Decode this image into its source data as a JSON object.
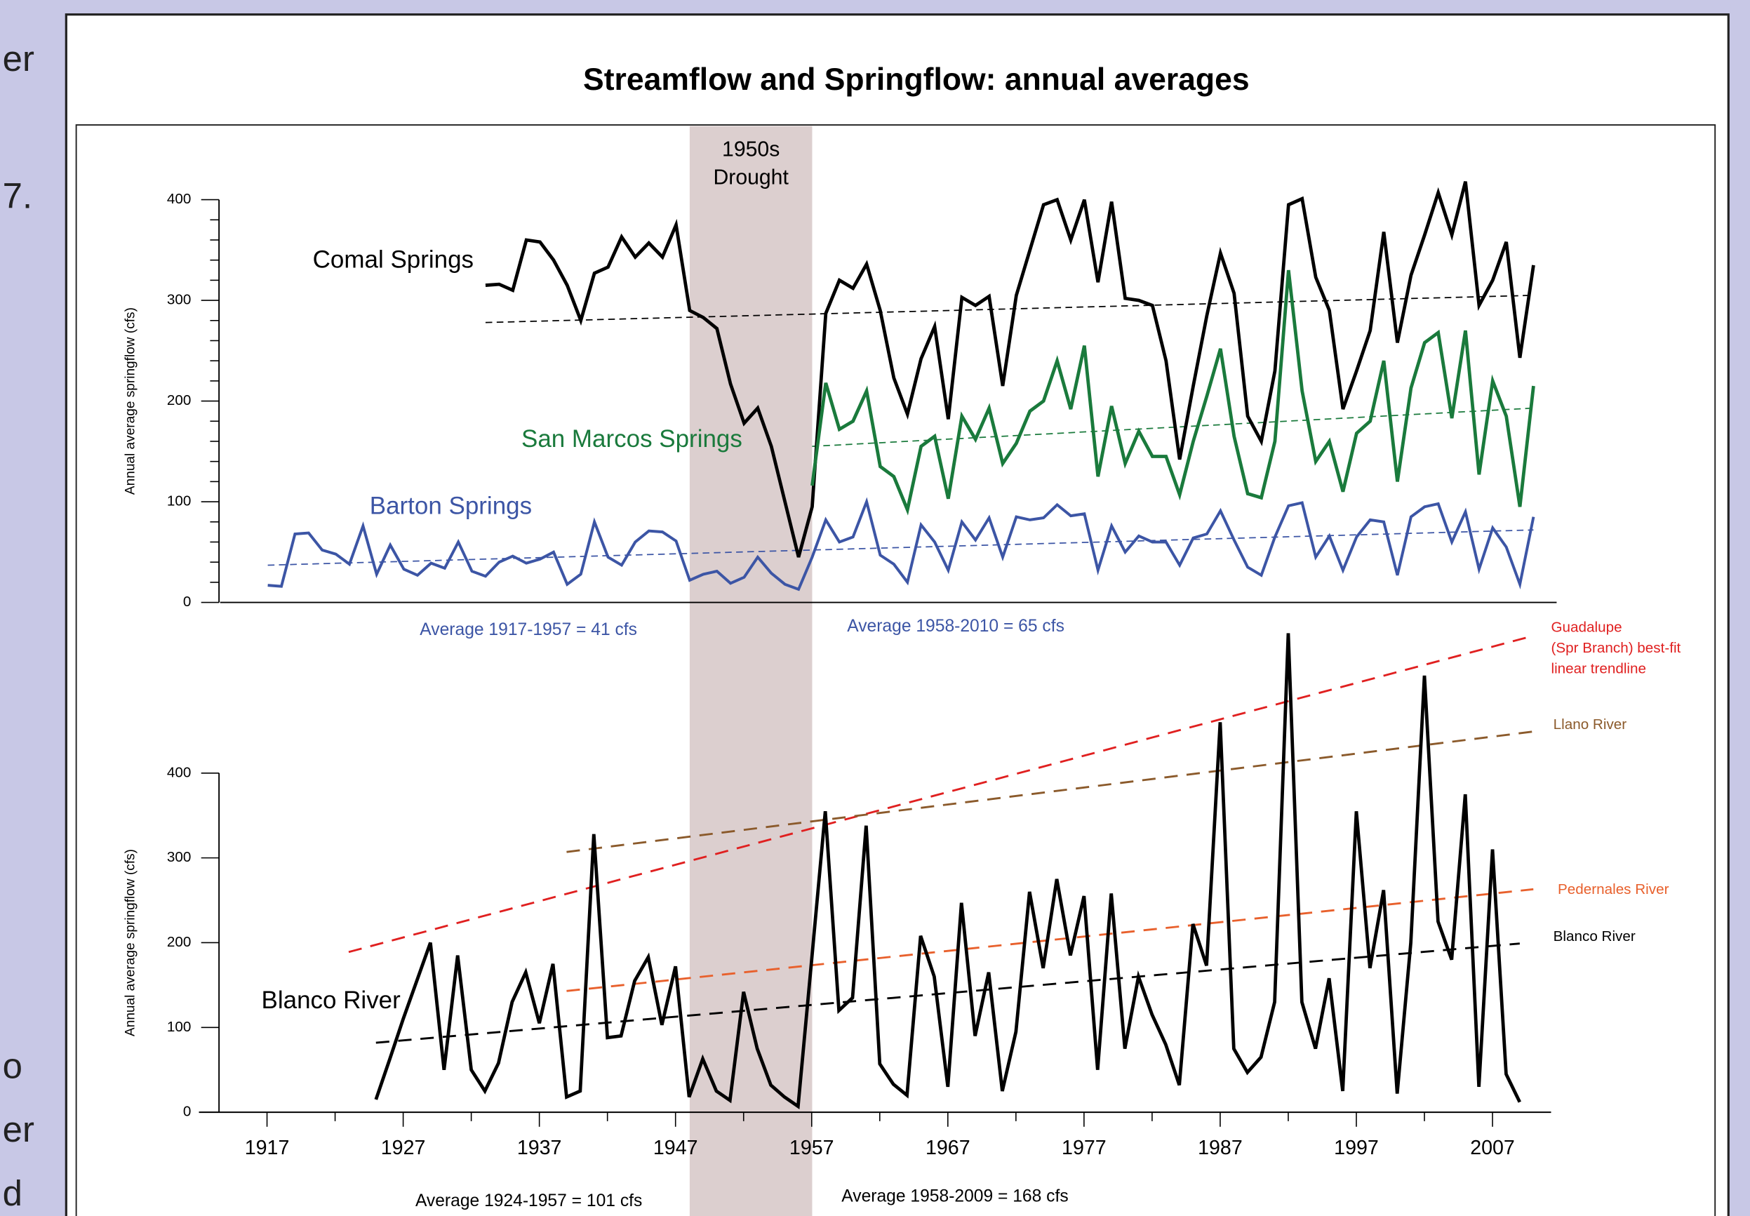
{
  "background_text": [
    "er",
    "7.",
    "o",
    "er",
    "d"
  ],
  "chart_data": [
    {
      "type": "line",
      "title": "Streamflow and Springflow: annual averages",
      "ylabel": "Annual average springflow (cfs)",
      "xlim": [
        1913.5,
        2011.7
      ],
      "ylim": [
        0,
        400
      ],
      "yticks": [
        0,
        100,
        200,
        300,
        400
      ],
      "yminor_ticks": [
        20,
        40,
        60,
        80,
        120,
        140,
        160,
        180,
        220,
        240,
        260,
        280,
        320,
        340,
        360,
        380
      ],
      "shaded_span": [
        1948,
        1957
      ],
      "shaded_color": "#dccfcf",
      "shaded_label": [
        "1950s",
        "Drought"
      ],
      "annotations": [
        "Average 1917-1957  = 41 cfs",
        "Average 1958-2010  = 65 cfs"
      ],
      "annotation_color": "#3c55a5",
      "x": [
        1917,
        1918,
        1919,
        1920,
        1921,
        1922,
        1923,
        1924,
        1925,
        1926,
        1927,
        1928,
        1929,
        1930,
        1931,
        1932,
        1933,
        1934,
        1935,
        1936,
        1937,
        1938,
        1939,
        1940,
        1941,
        1942,
        1943,
        1944,
        1945,
        1946,
        1947,
        1948,
        1949,
        1950,
        1951,
        1952,
        1953,
        1954,
        1955,
        1956,
        1957,
        1958,
        1959,
        1960,
        1961,
        1962,
        1963,
        1964,
        1965,
        1966,
        1967,
        1968,
        1969,
        1970,
        1971,
        1972,
        1973,
        1974,
        1975,
        1976,
        1977,
        1978,
        1979,
        1980,
        1981,
        1982,
        1983,
        1984,
        1985,
        1986,
        1987,
        1988,
        1989,
        1990,
        1991,
        1992,
        1993,
        1994,
        1995,
        1996,
        1997,
        1998,
        1999,
        2000,
        2001,
        2002,
        2003,
        2004,
        2005,
        2006,
        2007,
        2008,
        2009,
        2010
      ],
      "series": [
        {
          "name": "Comal Springs",
          "color": "#000000",
          "values": [
            null,
            null,
            null,
            null,
            null,
            null,
            null,
            null,
            null,
            null,
            null,
            null,
            null,
            null,
            null,
            null,
            315,
            316,
            310,
            360,
            358,
            340,
            315,
            280,
            327,
            333,
            363,
            343,
            357,
            343,
            375,
            290,
            283,
            272,
            217,
            178,
            193,
            155,
            100,
            45,
            95,
            287,
            320,
            312,
            336,
            290,
            223,
            187,
            242,
            274,
            182,
            303,
            295,
            304,
            215,
            305,
            350,
            395,
            400,
            360,
            400,
            318,
            398,
            302,
            300,
            295,
            240,
            142,
            215,
            285,
            347,
            307,
            185,
            160,
            230,
            395,
            401,
            323,
            290,
            192,
            230,
            270,
            368,
            258,
            325,
            365,
            407,
            365,
            418,
            295,
            320,
            358,
            243,
            335
          ],
          "trend": {
            "x": [
              1933,
              2010
            ],
            "values": [
              278,
              305
            ]
          }
        },
        {
          "name": "San Marcos Springs",
          "color": "#1a7a3c",
          "values": [
            null,
            null,
            null,
            null,
            null,
            null,
            null,
            null,
            null,
            null,
            null,
            null,
            null,
            null,
            null,
            null,
            null,
            null,
            null,
            null,
            null,
            null,
            null,
            null,
            null,
            null,
            null,
            null,
            null,
            null,
            null,
            null,
            null,
            null,
            null,
            null,
            null,
            null,
            null,
            null,
            116,
            218,
            172,
            180,
            210,
            135,
            125,
            92,
            155,
            165,
            103,
            185,
            162,
            193,
            138,
            158,
            190,
            200,
            240,
            192,
            255,
            125,
            195,
            138,
            170,
            145,
            145,
            107,
            160,
            205,
            252,
            165,
            108,
            104,
            160,
            330,
            210,
            140,
            160,
            110,
            168,
            180,
            240,
            120,
            213,
            258,
            268,
            183,
            270,
            127,
            220,
            185,
            95,
            215
          ],
          "trend": {
            "x": [
              1957,
              2010
            ],
            "values": [
              155,
              193
            ]
          }
        },
        {
          "name": "Barton Springs",
          "color": "#3c55a5",
          "values": [
            17,
            16,
            68,
            69,
            52,
            48,
            38,
            76,
            28,
            57,
            33,
            27,
            39,
            34,
            60,
            31,
            26,
            40,
            46,
            39,
            43,
            50,
            18,
            28,
            80,
            45,
            37,
            60,
            71,
            70,
            61,
            22,
            28,
            31,
            19,
            25,
            45,
            29,
            18,
            13,
            45,
            82,
            60,
            65,
            100,
            47,
            38,
            20,
            77,
            60,
            32,
            80,
            62,
            84,
            45,
            85,
            82,
            84,
            97,
            86,
            88,
            32,
            76,
            50,
            66,
            60,
            60,
            37,
            64,
            68,
            91,
            62,
            35,
            27,
            65,
            96,
            99,
            45,
            66,
            32,
            65,
            82,
            80,
            27,
            85,
            95,
            98,
            60,
            90,
            33,
            74,
            55,
            18,
            85
          ],
          "trend": {
            "x": [
              1917,
              2010
            ],
            "values": [
              37,
              72
            ]
          }
        }
      ]
    },
    {
      "type": "line",
      "ylabel": "Annual average springflow (cfs)",
      "xlim": [
        1912,
        2011.3
      ],
      "ylim": [
        0,
        400
      ],
      "yticks": [
        0,
        100,
        200,
        300,
        400
      ],
      "xticks": [
        1917,
        1927,
        1937,
        1947,
        1957,
        1967,
        1977,
        1987,
        1997,
        2007
      ],
      "xminor_ticks": [
        1922,
        1932,
        1942,
        1952,
        1962,
        1972,
        1982,
        1992,
        2002
      ],
      "annotations": [
        "Average 1924-1957  = 101 cfs",
        "Average 1958-2009  = 168 cfs"
      ],
      "annotation_color": "#000000",
      "x": [
        1925,
        1926,
        1927,
        1928,
        1929,
        1930,
        1931,
        1932,
        1933,
        1934,
        1935,
        1936,
        1937,
        1938,
        1939,
        1940,
        1941,
        1942,
        1943,
        1944,
        1945,
        1946,
        1947,
        1948,
        1949,
        1950,
        1951,
        1952,
        1953,
        1954,
        1955,
        1956,
        1957,
        1958,
        1959,
        1960,
        1961,
        1962,
        1963,
        1964,
        1965,
        1966,
        1967,
        1968,
        1969,
        1970,
        1971,
        1972,
        1973,
        1974,
        1975,
        1976,
        1977,
        1978,
        1979,
        1980,
        1981,
        1982,
        1983,
        1984,
        1985,
        1986,
        1987,
        1988,
        1989,
        1990,
        1991,
        1992,
        1993,
        1994,
        1995,
        1996,
        1997,
        1998,
        1999,
        2000,
        2001,
        2002,
        2003,
        2004,
        2005,
        2006,
        2007,
        2008,
        2009
      ],
      "series": [
        {
          "name": "Blanco River",
          "color": "#000000",
          "values": [
            15,
            62,
            110,
            155,
            200,
            50,
            185,
            50,
            25,
            58,
            130,
            165,
            105,
            175,
            18,
            25,
            328,
            88,
            90,
            155,
            183,
            103,
            172,
            18,
            63,
            25,
            14,
            142,
            75,
            32,
            18,
            7,
            180,
            355,
            120,
            135,
            338,
            57,
            33,
            20,
            208,
            160,
            30,
            247,
            90,
            165,
            25,
            95,
            260,
            170,
            275,
            185,
            255,
            50,
            258,
            75,
            160,
            115,
            80,
            32,
            222,
            173,
            460,
            75,
            47,
            65,
            130,
            565,
            130,
            75,
            158,
            25,
            355,
            170,
            262,
            22,
            200,
            515,
            225,
            180,
            375,
            30,
            310,
            45,
            12
          ]
        }
      ],
      "trendlines": [
        {
          "name_lines": [
            "Guadalupe",
            "(Spr Branch) best-fit",
            "linear trendline"
          ],
          "color": "#e02020",
          "x": [
            1923,
            2010
          ],
          "values": [
            189,
            562
          ]
        },
        {
          "name_lines": [
            "Llano River"
          ],
          "color": "#8b5a2b",
          "x": [
            1939,
            2010
          ],
          "values": [
            307,
            449
          ]
        },
        {
          "name_lines": [
            "Pedernales River"
          ],
          "color": "#e8602c",
          "x": [
            1939,
            2010
          ],
          "values": [
            143,
            263
          ]
        },
        {
          "name_lines": [
            "Blanco River"
          ],
          "color": "#000000",
          "x": [
            1925,
            2009
          ],
          "values": [
            82,
            199
          ]
        }
      ]
    }
  ]
}
